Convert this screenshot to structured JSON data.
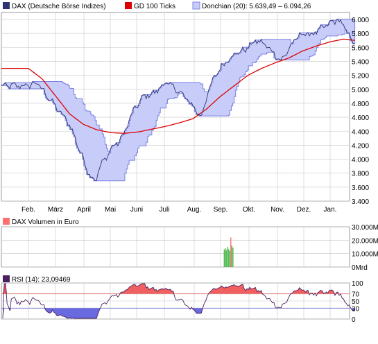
{
  "colors": {
    "price": "#2d3470",
    "sma": "#dd0000",
    "donchian_fill": "#c8ccf8",
    "donchian_edge": "#7c82e6",
    "grid": "#c8c8c8",
    "volume": "#55bb55",
    "volume_pos": "#ff7070",
    "rsi_line": "#4a2060",
    "rsi_over": "#f06060",
    "rsi_under": "#6a6ae0",
    "rsi_70": "#e08080",
    "rsi_30": "#8080d0"
  },
  "legend": {
    "price": "DAX (Deutsche Börse Indizes)",
    "sma": "GD 100 Ticks",
    "donchian": "Donchian (20): 5.639,49 – 6.094,26",
    "volume": "DAX Volumen in Euro",
    "rsi": "RSI (14): 23,09469"
  },
  "chart_data": [
    {
      "type": "line",
      "months": [
        "Feb.",
        "März",
        "April",
        "Mai",
        "Juni",
        "Juli",
        "Aug.",
        "Sep.",
        "Okt.",
        "Nov.",
        "Dez.",
        "Jan."
      ],
      "y_ticks": [
        "3.400",
        "3.600",
        "3.800",
        "4.000",
        "4.200",
        "4.400",
        "4.600",
        "4.800",
        "5.000",
        "5.200",
        "5.400",
        "5.600",
        "5.800",
        "6.000"
      ],
      "ylim": [
        3400,
        6100
      ],
      "grid": true,
      "scale": "linear",
      "price_keypoints": [
        [
          0,
          5050
        ],
        [
          0.3,
          5100
        ],
        [
          1.5,
          4500
        ],
        [
          1.9,
          4100
        ],
        [
          2.2,
          3800
        ],
        [
          2.45,
          3680
        ],
        [
          2.6,
          3900
        ],
        [
          2.8,
          4000
        ],
        [
          3.0,
          4150
        ],
        [
          3.3,
          4250
        ],
        [
          3.5,
          4380
        ],
        [
          3.8,
          4680
        ],
        [
          4.2,
          4900
        ],
        [
          4.6,
          4950
        ],
        [
          5.0,
          5100
        ],
        [
          5.4,
          5000
        ],
        [
          5.8,
          4850
        ],
        [
          6.0,
          4760
        ],
        [
          6.3,
          4600
        ],
        [
          6.5,
          4900
        ],
        [
          6.8,
          5200
        ],
        [
          7.0,
          5300
        ],
        [
          7.2,
          5400
        ],
        [
          7.5,
          5500
        ],
        [
          7.8,
          5550
        ],
        [
          8.0,
          5600
        ],
        [
          8.3,
          5700
        ],
        [
          8.6,
          5650
        ],
        [
          9.0,
          5500
        ],
        [
          9.2,
          5400
        ],
        [
          9.5,
          5580
        ],
        [
          9.8,
          5750
        ],
        [
          10.0,
          5800
        ],
        [
          10.3,
          5780
        ],
        [
          10.6,
          5850
        ],
        [
          11.0,
          5950
        ],
        [
          11.3,
          6000
        ],
        [
          11.5,
          5900
        ],
        [
          11.8,
          5700
        ],
        [
          11.9,
          5650
        ]
      ],
      "sma_keypoints": [
        [
          0,
          5300
        ],
        [
          0.5,
          5150
        ],
        [
          1.0,
          4900
        ],
        [
          1.5,
          4650
        ],
        [
          2.0,
          4500
        ],
        [
          2.5,
          4420
        ],
        [
          3.0,
          4380
        ],
        [
          3.5,
          4370
        ],
        [
          4.0,
          4390
        ],
        [
          4.5,
          4430
        ],
        [
          5.0,
          4470
        ],
        [
          5.5,
          4520
        ],
        [
          6.0,
          4580
        ],
        [
          6.5,
          4720
        ],
        [
          7.0,
          4900
        ],
        [
          7.5,
          5050
        ],
        [
          8.0,
          5200
        ],
        [
          8.5,
          5300
        ],
        [
          9.0,
          5380
        ],
        [
          9.5,
          5450
        ],
        [
          10.0,
          5550
        ],
        [
          10.5,
          5620
        ],
        [
          11.0,
          5680
        ],
        [
          11.5,
          5720
        ],
        [
          11.9,
          5700
        ]
      ],
      "donchian_lookback": 20
    },
    {
      "type": "bar",
      "series_label": "DAX Volumen in Euro",
      "y_ticks": [
        "30.000M",
        "20.000M",
        "10.000M",
        "0Mrd"
      ],
      "ylim": [
        0,
        30000
      ],
      "bars": [
        [
          7.12,
          13000
        ],
        [
          7.16,
          14000
        ],
        [
          7.2,
          12500
        ],
        [
          7.24,
          15000
        ],
        [
          7.28,
          13500
        ],
        [
          7.32,
          12000
        ],
        [
          7.36,
          22000
        ],
        [
          7.4,
          16000
        ],
        [
          7.44,
          14500
        ]
      ]
    },
    {
      "type": "line",
      "series_label": "RSI (14)",
      "current_value": 23.09469,
      "y_ticks": [
        "100",
        "70",
        "50",
        "30",
        "0"
      ],
      "ylim": [
        0,
        100
      ],
      "bands": [
        30,
        70
      ]
    }
  ]
}
